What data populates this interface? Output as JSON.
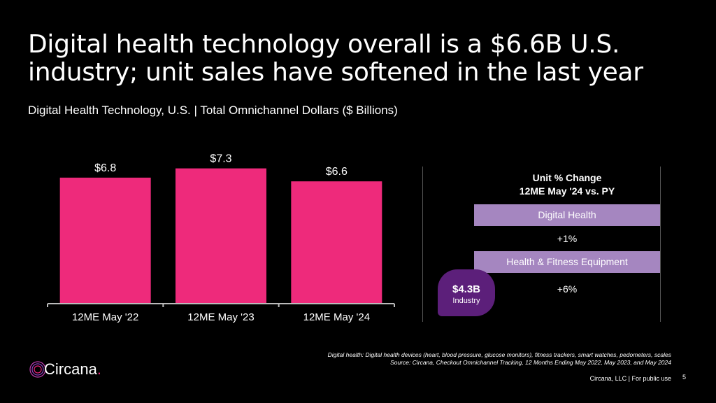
{
  "title": "Digital health technology overall is a $6.6B U.S. industry; unit sales have softened in the last year",
  "subtitle": "Digital Health Technology, U.S. | Total Omnichannel Dollars ($ Billions)",
  "chart_data": {
    "type": "bar",
    "title": "Digital Health Technology, U.S. | Total Omnichannel Dollars ($ Billions)",
    "categories": [
      "12ME May '22",
      "12ME May '23",
      "12ME May '24"
    ],
    "values": [
      6.8,
      7.3,
      6.6
    ],
    "data_labels": [
      "$6.8",
      "$7.3",
      "$6.6"
    ],
    "ylabel": "",
    "xlabel": "",
    "ylim": [
      0,
      7.4
    ],
    "bar_color": "#ee2a7b",
    "grid": false
  },
  "unit_change": {
    "title_line1": "Unit % Change",
    "title_line2": "12ME May '24 vs. PY",
    "rows": [
      {
        "label": "Digital Health",
        "value": "+1%"
      },
      {
        "label": "Health & Fitness Equipment",
        "value": "+6%"
      }
    ],
    "bar_color": "#a586c0"
  },
  "badge": {
    "value": "$4.3B",
    "label": "Industry",
    "color": "#5c1f7a"
  },
  "footnote": {
    "line1": "Digital health: Digital health devices (heart, blood pressure, glucose monitors), fitness trackers, smart watches, pedometers, scales",
    "line2": "Source: Circana, Checkout Omnichannel Tracking, 12 Months Ending May 2022, May 2023, and May 2024"
  },
  "logo": {
    "text": "Circana",
    "dot": "."
  },
  "footer": {
    "text": "Circana, LLC |  For public use",
    "page": "5"
  }
}
